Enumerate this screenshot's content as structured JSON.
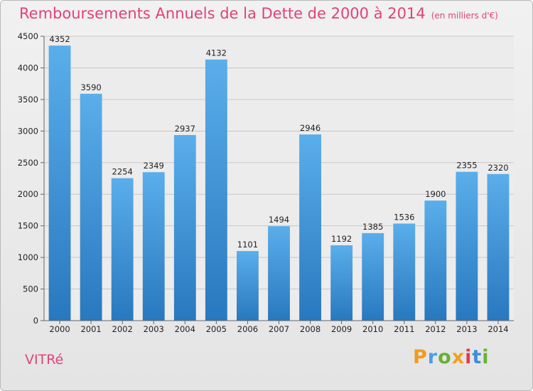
{
  "chart_data": {
    "type": "bar",
    "title": "Remboursements Annuels de la Dette de 2000 à 2014",
    "subtitle": "(en milliers d'€)",
    "categories": [
      "2000",
      "2001",
      "2002",
      "2003",
      "2004",
      "2005",
      "2006",
      "2007",
      "2008",
      "2009",
      "2010",
      "2011",
      "2012",
      "2013",
      "2014"
    ],
    "values": [
      4352,
      3590,
      2254,
      2349,
      2937,
      4132,
      1101,
      1494,
      2946,
      1192,
      1385,
      1536,
      1900,
      2355,
      2320
    ],
    "value_labels": [
      "4352",
      "3590",
      "2254",
      "2349",
      "2937",
      "4132",
      "1101",
      "1494",
      "2946",
      "1192",
      "1385",
      "1536",
      "1900",
      "2355",
      "2320"
    ],
    "yticks": [
      0,
      500,
      1000,
      1500,
      2000,
      2500,
      3000,
      3500,
      4000,
      4500
    ],
    "ytick_labels": [
      "0",
      "500",
      "1000",
      "1500",
      "2000",
      "2500",
      "3000",
      "3500",
      "4000",
      "4500"
    ],
    "ylim": [
      0,
      4500
    ],
    "grid": true,
    "bar_color": "#3f93d8"
  },
  "location": "VITRé",
  "logo": {
    "letters": [
      "P",
      "r",
      "o",
      "x",
      "i",
      "t",
      "i"
    ],
    "colors": [
      "#f39a1f",
      "#4a9ee6",
      "#67b12f",
      "#f0a020",
      "#e23b4d",
      "#3a8fd8",
      "#6ab22f"
    ]
  }
}
